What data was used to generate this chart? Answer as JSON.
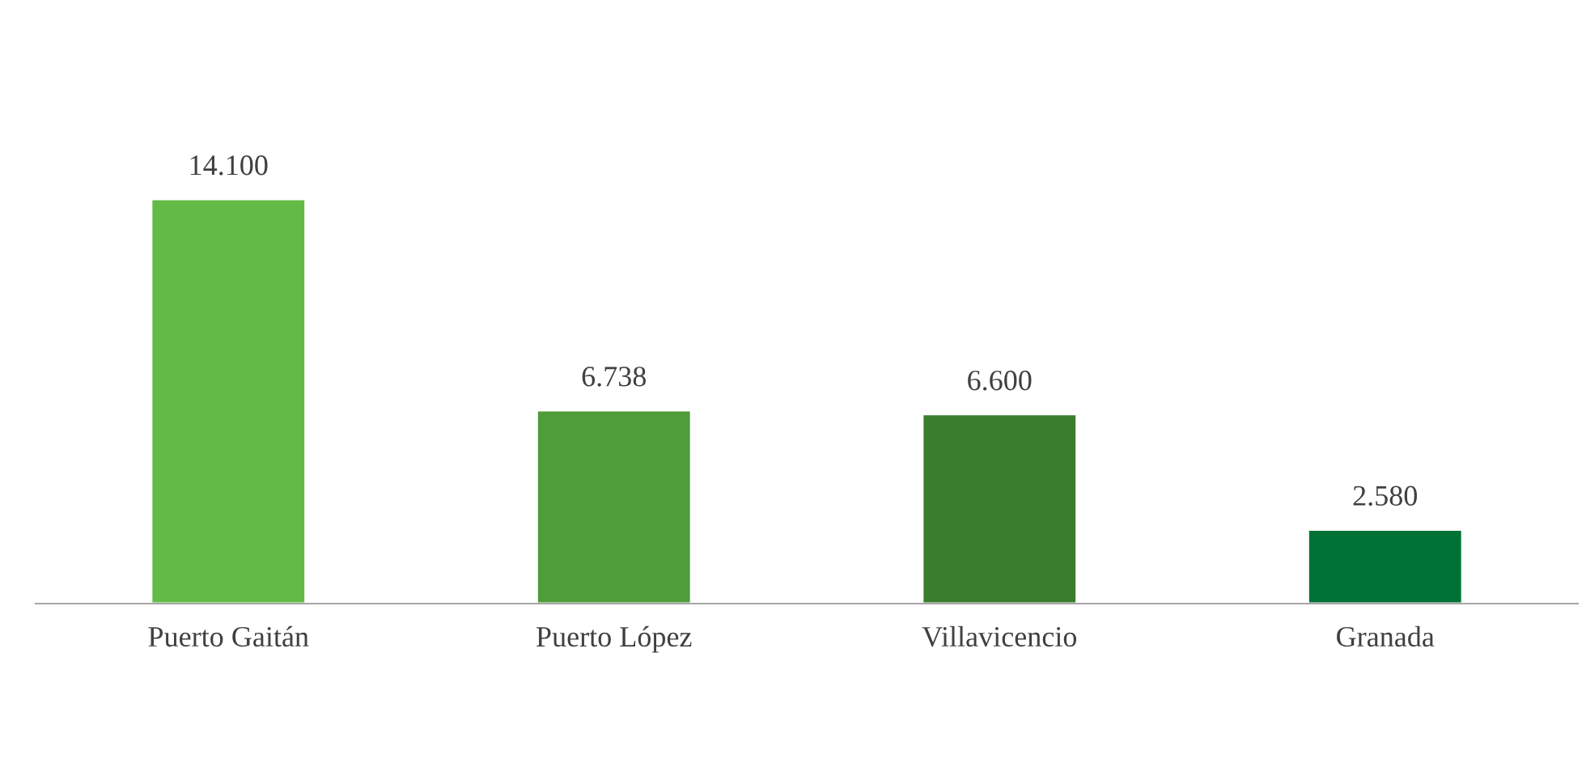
{
  "chart_data": {
    "type": "bar",
    "categories": [
      "Puerto Gaitán",
      "Puerto López",
      "Villavicencio",
      "Granada"
    ],
    "values": [
      14100,
      6738,
      6600,
      2580
    ],
    "value_labels": [
      "14.100",
      "6.738",
      "6.600",
      "2.580"
    ],
    "colors": [
      "#62bb46",
      "#4e9c3a",
      "#3a7d2f",
      "#007236"
    ],
    "grid": false,
    "legend": false,
    "tick_labels": "x"
  }
}
